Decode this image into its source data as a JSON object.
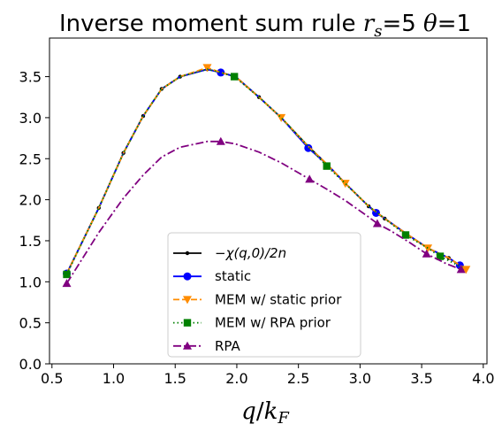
{
  "chart_data": {
    "type": "line",
    "title_parts": {
      "main": "Inverse moment sum rule ",
      "rs_var": "r",
      "rs_sub": "s",
      "rs_eq": "=5 ",
      "theta_var": "θ",
      "theta_eq": "=1"
    },
    "xlabel_parts": {
      "q": "q",
      "slash": "/",
      "k": "k",
      "sub": "F"
    },
    "ylabel": "",
    "xlim": [
      0.48,
      4.03
    ],
    "ylim": [
      0.0,
      3.97
    ],
    "xticks": [
      0.5,
      1.0,
      1.5,
      2.0,
      2.5,
      3.0,
      3.5,
      4.0
    ],
    "xtick_labels": [
      "0.5",
      "1.0",
      "1.5",
      "2.0",
      "2.5",
      "3.0",
      "3.5",
      "4.0"
    ],
    "yticks": [
      0.0,
      0.5,
      1.0,
      1.5,
      2.0,
      2.5,
      3.0,
      3.5
    ],
    "ytick_labels": [
      "0.0",
      "0.5",
      "1.0",
      "1.5",
      "2.0",
      "2.5",
      "3.0",
      "3.5"
    ],
    "grid": false,
    "legend_position": "lower-center",
    "series": [
      {
        "name": "−χ(q,0)/2n",
        "color": "#000000",
        "marker": "dot",
        "dash": "solid",
        "x": [
          0.62,
          0.88,
          1.08,
          1.24,
          1.39,
          1.54,
          1.76,
          1.87,
          1.99,
          2.18,
          2.36,
          2.58,
          2.74,
          2.88,
          3.07,
          3.2,
          3.38,
          3.55,
          3.72,
          3.85
        ],
        "y": [
          1.1,
          1.9,
          2.57,
          3.02,
          3.35,
          3.5,
          3.59,
          3.55,
          3.5,
          3.25,
          3.0,
          2.65,
          2.42,
          2.2,
          1.92,
          1.77,
          1.58,
          1.41,
          1.29,
          1.16
        ]
      },
      {
        "name": "static",
        "color": "#0000ff",
        "marker": "circle",
        "dash": "solid",
        "x": [
          0.62,
          0.88,
          1.08,
          1.24,
          1.39,
          1.54,
          1.76,
          1.87,
          1.99,
          2.18,
          2.36,
          2.58,
          2.74,
          2.88,
          3.07,
          3.13,
          3.2,
          3.38,
          3.55,
          3.72,
          3.81,
          3.85
        ],
        "y": [
          1.1,
          1.9,
          2.57,
          3.02,
          3.35,
          3.5,
          3.59,
          3.55,
          3.5,
          3.25,
          3.0,
          2.63,
          2.42,
          2.2,
          1.92,
          1.84,
          1.77,
          1.58,
          1.41,
          1.29,
          1.2,
          1.16
        ],
        "marker_x": [
          0.62,
          1.87,
          2.58,
          3.13,
          3.81
        ],
        "marker_y": [
          1.1,
          3.55,
          2.63,
          1.84,
          1.2
        ]
      },
      {
        "name": "MEM w/ static prior",
        "color": "#ff8c00",
        "marker": "triangle-down",
        "dash": "dashed",
        "x": [
          0.62,
          0.88,
          1.08,
          1.24,
          1.39,
          1.54,
          1.76,
          1.87,
          1.99,
          2.18,
          2.36,
          2.58,
          2.74,
          2.88,
          3.07,
          3.2,
          3.38,
          3.55,
          3.72,
          3.86
        ],
        "y": [
          1.1,
          1.9,
          2.57,
          3.02,
          3.35,
          3.5,
          3.61,
          3.55,
          3.5,
          3.25,
          3.0,
          2.65,
          2.42,
          2.2,
          1.92,
          1.77,
          1.58,
          1.41,
          1.29,
          1.15
        ],
        "marker_x": [
          1.76,
          2.36,
          2.88,
          3.55,
          3.86
        ],
        "marker_y": [
          3.61,
          3.0,
          2.2,
          1.41,
          1.15
        ]
      },
      {
        "name": "MEM w/ RPA prior",
        "color": "#008000",
        "marker": "square",
        "dash": "dotted",
        "x": [
          0.62,
          0.88,
          1.08,
          1.24,
          1.39,
          1.54,
          1.76,
          1.87,
          1.98,
          2.18,
          2.36,
          2.58,
          2.73,
          2.88,
          3.07,
          3.2,
          3.37,
          3.55,
          3.65,
          3.85
        ],
        "y": [
          1.09,
          1.9,
          2.57,
          3.02,
          3.35,
          3.5,
          3.59,
          3.55,
          3.5,
          3.25,
          3.0,
          2.65,
          2.41,
          2.2,
          1.92,
          1.77,
          1.57,
          1.41,
          1.31,
          1.16
        ],
        "marker_x": [
          0.62,
          1.98,
          2.73,
          3.37,
          3.65
        ],
        "marker_y": [
          1.09,
          3.5,
          2.41,
          1.57,
          1.31
        ]
      },
      {
        "name": "RPA",
        "color": "#800080",
        "marker": "triangle-up",
        "dash": "dashdot",
        "x": [
          0.62,
          0.88,
          1.08,
          1.24,
          1.39,
          1.54,
          1.76,
          1.87,
          1.99,
          2.18,
          2.36,
          2.59,
          2.74,
          2.88,
          3.07,
          3.14,
          3.25,
          3.4,
          3.54,
          3.7,
          3.82
        ],
        "y": [
          0.98,
          1.6,
          2.02,
          2.3,
          2.52,
          2.64,
          2.71,
          2.71,
          2.68,
          2.58,
          2.45,
          2.25,
          2.12,
          1.99,
          1.79,
          1.71,
          1.62,
          1.48,
          1.34,
          1.22,
          1.15
        ],
        "marker_x": [
          0.62,
          1.87,
          2.59,
          3.14,
          3.54,
          3.82
        ],
        "marker_y": [
          0.98,
          2.71,
          2.25,
          1.71,
          1.34,
          1.15
        ]
      }
    ]
  }
}
